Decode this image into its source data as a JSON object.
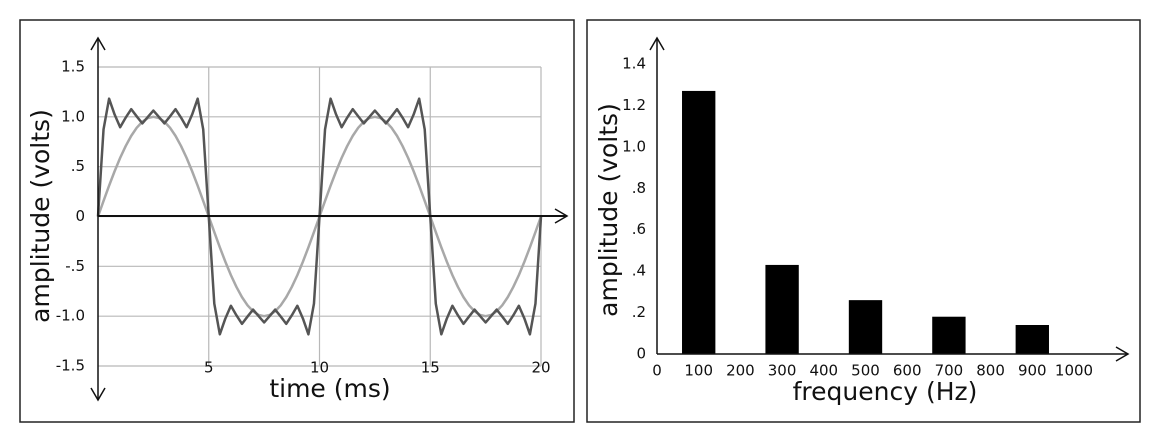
{
  "chart_data": [
    {
      "type": "line",
      "xlabel": "time (ms)",
      "ylabel": "amplitude (volts)",
      "x": [
        0,
        0.25,
        0.5,
        0.75,
        1,
        1.25,
        1.5,
        1.75,
        2,
        2.25,
        2.5,
        2.75,
        3,
        3.25,
        3.5,
        3.75,
        4,
        4.25,
        4.5,
        4.75,
        5,
        5.25,
        5.5,
        5.75,
        6,
        6.25,
        6.5,
        6.75,
        7,
        7.25,
        7.5,
        7.75,
        8,
        8.25,
        8.5,
        8.75,
        9,
        9.25,
        9.5,
        9.75,
        10,
        10.25,
        10.5,
        10.75,
        11,
        11.25,
        11.5,
        11.75,
        12,
        12.25,
        12.5,
        12.75,
        13,
        13.25,
        13.5,
        13.75,
        14,
        14.25,
        14.5,
        14.75,
        15,
        15.25,
        15.5,
        15.75,
        16,
        16.25,
        16.5,
        16.75,
        17,
        17.25,
        17.5,
        17.75,
        18,
        18.25,
        18.5,
        18.75,
        19,
        19.25,
        19.5,
        19.75,
        20
      ],
      "series": [
        {
          "color": "#a8a8a8",
          "values": [
            0,
            0.156,
            0.309,
            0.454,
            0.588,
            0.707,
            0.809,
            0.891,
            0.951,
            0.988,
            1,
            0.988,
            0.951,
            0.891,
            0.809,
            0.707,
            0.588,
            0.454,
            0.309,
            0.156,
            0,
            -0.156,
            -0.309,
            -0.454,
            -0.588,
            -0.707,
            -0.809,
            -0.891,
            -0.951,
            -0.988,
            -1,
            -0.988,
            -0.951,
            -0.891,
            -0.809,
            -0.707,
            -0.588,
            -0.454,
            -0.309,
            -0.156,
            0,
            0.156,
            0.309,
            0.454,
            0.588,
            0.707,
            0.809,
            0.891,
            0.951,
            0.988,
            1,
            0.988,
            0.951,
            0.891,
            0.809,
            0.707,
            0.588,
            0.454,
            0.309,
            0.156,
            0,
            -0.156,
            -0.309,
            -0.454,
            -0.588,
            -0.707,
            -0.809,
            -0.891,
            -0.951,
            -0.988,
            -1,
            -0.988,
            -0.951,
            -0.891,
            -0.809,
            -0.707,
            -0.588,
            -0.454,
            -0.309,
            -0.156,
            0
          ]
        },
        {
          "color": "#555555",
          "values": [
            0,
            0.874,
            1.182,
            1.023,
            0.896,
            0.992,
            1.077,
            1.004,
            0.934,
            0.999,
            1.063,
            0.999,
            0.934,
            1.004,
            1.077,
            0.992,
            0.896,
            1.023,
            1.182,
            0.874,
            0,
            -0.874,
            -1.182,
            -1.023,
            -0.896,
            -0.992,
            -1.077,
            -1.004,
            -0.934,
            -0.999,
            -1.063,
            -0.999,
            -0.934,
            -1.004,
            -1.077,
            -0.992,
            -0.896,
            -1.023,
            -1.182,
            -0.874,
            0,
            0.874,
            1.182,
            1.023,
            0.896,
            0.992,
            1.077,
            1.004,
            0.934,
            0.999,
            1.063,
            0.999,
            0.934,
            1.004,
            1.077,
            0.992,
            0.896,
            1.023,
            1.182,
            0.874,
            0,
            -0.874,
            -1.182,
            -1.023,
            -0.896,
            -0.992,
            -1.077,
            -1.004,
            -0.934,
            -0.999,
            -1.063,
            -0.999,
            -0.934,
            -1.004,
            -1.077,
            -0.992,
            -0.896,
            -1.023,
            -1.182,
            -0.874,
            0
          ]
        }
      ],
      "xlim": [
        0,
        20
      ],
      "xticks": [
        5,
        10,
        15,
        20
      ],
      "ylim": [
        -1.5,
        1.5
      ],
      "yticks": [
        1.5,
        {
          "value": 1.0,
          "label": "1.0"
        },
        {
          "value": 0.5,
          "label": ".5"
        },
        0,
        {
          "value": -0.5,
          "label": "-.5"
        },
        {
          "value": -1.0,
          "label": "-1.0"
        },
        -1.5
      ],
      "grid": true
    },
    {
      "type": "bar",
      "xlabel": "frequency (Hz)",
      "ylabel": "amplitude (volts)",
      "x": [
        100,
        300,
        500,
        700,
        900
      ],
      "values": [
        1.27,
        0.43,
        0.26,
        0.18,
        0.14
      ],
      "color": "#000000",
      "xlim": [
        0,
        1000
      ],
      "xticks": [
        0,
        100,
        200,
        300,
        400,
        500,
        600,
        700,
        800,
        900,
        1000
      ],
      "ylim": [
        0,
        1.4
      ],
      "yticks": [
        0,
        {
          "value": 0.2,
          "label": ".2"
        },
        {
          "value": 0.4,
          "label": ".4"
        },
        {
          "value": 0.6,
          "label": ".6"
        },
        {
          "value": 0.8,
          "label": ".8"
        },
        {
          "value": 1.0,
          "label": "1.0"
        },
        1.2,
        1.4
      ],
      "grid": false
    }
  ]
}
